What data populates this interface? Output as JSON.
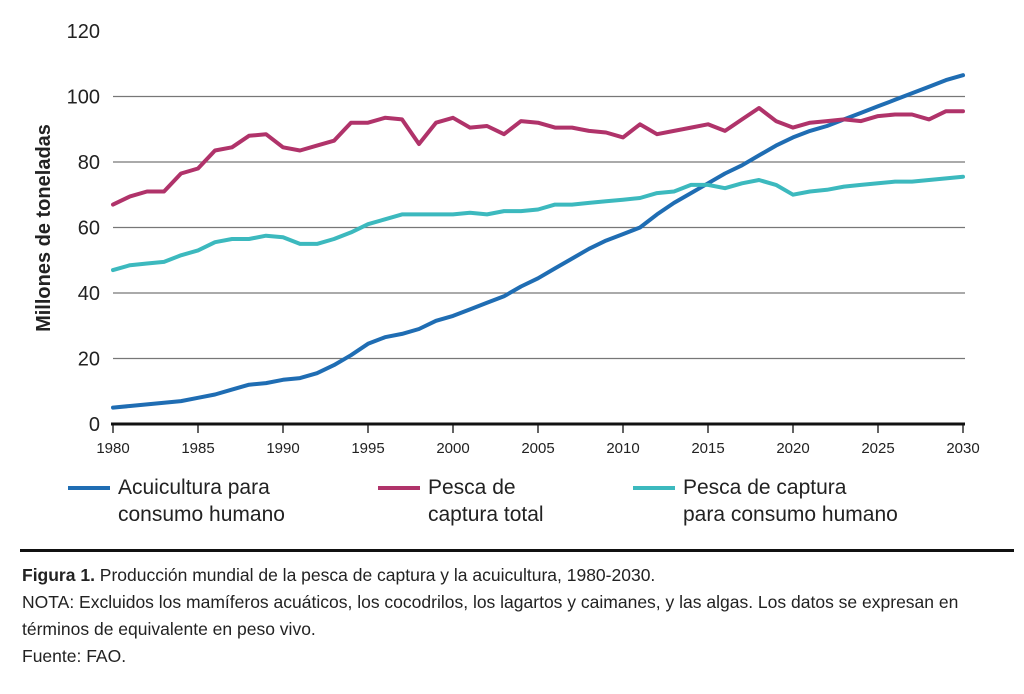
{
  "chart_data": {
    "type": "line",
    "title": "",
    "xlabel": "",
    "ylabel": "Millones de toneladas",
    "xlim": [
      1980,
      2030
    ],
    "ylim": [
      0,
      120
    ],
    "yticks": [
      0,
      20,
      40,
      60,
      80,
      100,
      120
    ],
    "xticks": [
      1980,
      1985,
      1990,
      1995,
      2000,
      2005,
      2010,
      2015,
      2020,
      2025,
      2030
    ],
    "grid": "horizontal",
    "legend_position": "bottom",
    "x": [
      1980,
      1981,
      1982,
      1983,
      1984,
      1985,
      1986,
      1987,
      1988,
      1989,
      1990,
      1991,
      1992,
      1993,
      1994,
      1995,
      1996,
      1997,
      1998,
      1999,
      2000,
      2001,
      2002,
      2003,
      2004,
      2005,
      2006,
      2007,
      2008,
      2009,
      2010,
      2011,
      2012,
      2013,
      2014,
      2015,
      2016,
      2017,
      2018,
      2019,
      2020,
      2021,
      2022,
      2023,
      2024,
      2025,
      2026,
      2027,
      2028,
      2029,
      2030
    ],
    "series": [
      {
        "name": "Acuicultura para consumo humano",
        "name_lines": [
          "Acuicultura para",
          "consumo humano"
        ],
        "color": "#1f6db3",
        "values": [
          5,
          5.5,
          6,
          6.5,
          7,
          8,
          9,
          10.5,
          12,
          12.5,
          13.5,
          14,
          15.5,
          18,
          21,
          24.5,
          26.5,
          27.5,
          29,
          31.5,
          33,
          35,
          37,
          39,
          42,
          44.5,
          47.5,
          50.5,
          53.5,
          56,
          58,
          60,
          64,
          67.5,
          70.5,
          73.5,
          76.5,
          79,
          82,
          85,
          87.5,
          89.5,
          91,
          93,
          95,
          97,
          99,
          101,
          103,
          105,
          106.5
        ]
      },
      {
        "name": "Pesca de captura total",
        "name_lines": [
          "Pesca de",
          "captura total"
        ],
        "color": "#b0336a",
        "values": [
          67,
          69.5,
          71,
          71,
          76.5,
          78,
          83.5,
          84.5,
          88,
          88.5,
          84.5,
          83.5,
          85,
          86.5,
          92,
          92,
          93.5,
          93,
          85.5,
          92,
          93.5,
          90.5,
          91,
          88.5,
          92.5,
          92,
          90.5,
          90.5,
          89.5,
          89,
          87.5,
          91.5,
          88.5,
          89.5,
          90.5,
          91.5,
          89.5,
          93,
          96.5,
          92.5,
          90.5,
          92,
          92.5,
          93,
          92.5,
          94,
          94.5,
          94.5,
          93,
          95.5,
          95.5
        ]
      },
      {
        "name": "Pesca de captura para consumo humano",
        "name_lines": [
          "Pesca de captura",
          "para consumo humano"
        ],
        "color": "#3cb9be",
        "values": [
          47,
          48.5,
          49,
          49.5,
          51.5,
          53,
          55.5,
          56.5,
          56.5,
          57.5,
          57,
          55,
          55,
          56.5,
          58.5,
          61,
          62.5,
          64,
          64,
          64,
          64,
          64.5,
          64,
          65,
          65,
          65.5,
          67,
          67,
          67.5,
          68,
          68.5,
          69,
          70.5,
          71,
          73,
          73,
          72,
          73.5,
          74.5,
          73,
          70,
          71,
          71.5,
          72.5,
          73,
          73.5,
          74,
          74,
          74.5,
          75,
          75.5
        ]
      }
    ]
  },
  "caption": {
    "figure_label": "Figura 1.",
    "figure_text": " Producción mundial de la pesca de captura y la acuicultura, 1980-2030.",
    "note": "NOTA: Excluidos los mamíferos acuáticos, los cocodrilos, los lagartos y caimanes, y las algas. Los datos se expresan en términos de equivalente en peso vivo.",
    "source": "Fuente: FAO."
  }
}
